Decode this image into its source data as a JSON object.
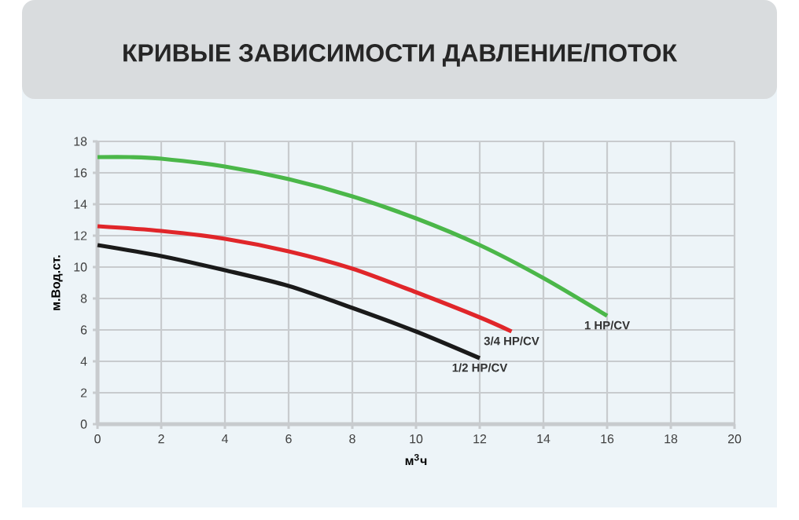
{
  "chart_data": {
    "type": "line",
    "title": "КРИВЫЕ ЗАВИСИМОСТИ ДАВЛЕНИЕ/ПОТОК",
    "xlabel": "м$^{3}$ч",
    "ylabel": "м.Вод.ст.",
    "xlim": [
      0,
      20
    ],
    "ylim": [
      0,
      18
    ],
    "xticks": [
      0,
      2,
      4,
      6,
      8,
      10,
      12,
      14,
      16,
      18,
      20
    ],
    "yticks": [
      0,
      2,
      4,
      6,
      8,
      10,
      12,
      14,
      16,
      18
    ],
    "grid": true,
    "legend": false,
    "marker": "none",
    "line_style": "solid",
    "series": [
      {
        "name": "1 HP/CV",
        "color": "#4bb749",
        "x": [
          0,
          1,
          2,
          4,
          6,
          8,
          10,
          12,
          14,
          16
        ],
        "values": [
          17.0,
          17.0,
          16.9,
          16.4,
          15.6,
          14.5,
          13.1,
          11.4,
          9.3,
          6.9
        ]
      },
      {
        "name": "3/4 HP/CV",
        "color": "#e0262a",
        "x": [
          0,
          2,
          4,
          6,
          8,
          10,
          12,
          13
        ],
        "values": [
          12.6,
          12.3,
          11.8,
          11.0,
          9.9,
          8.4,
          6.8,
          5.9
        ]
      },
      {
        "name": "1/2 HP/CV",
        "color": "#1a1a1a",
        "x": [
          0,
          2,
          4,
          6,
          8,
          10,
          12
        ],
        "values": [
          11.4,
          10.7,
          9.8,
          8.8,
          7.4,
          5.9,
          4.2
        ]
      }
    ]
  }
}
